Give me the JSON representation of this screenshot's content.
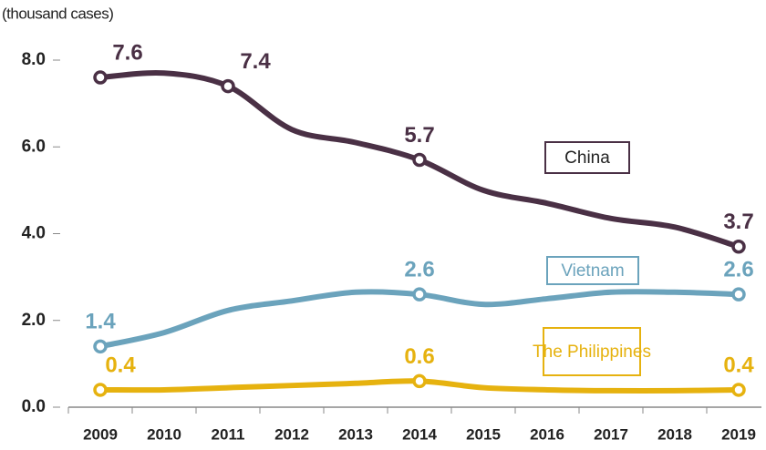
{
  "chart_data": {
    "type": "line",
    "y_label": "(thousand cases)",
    "categories": [
      "2009",
      "2010",
      "2011",
      "2012",
      "2013",
      "2014",
      "2015",
      "2016",
      "2017",
      "2018",
      "2019"
    ],
    "series": [
      {
        "name": "China",
        "color": "#4a3045",
        "values": [
          7.6,
          7.7,
          7.4,
          6.4,
          6.1,
          5.7,
          5.0,
          4.7,
          4.35,
          4.15,
          3.7
        ],
        "value_labels": [
          "7.6",
          null,
          "7.4",
          null,
          null,
          "5.7",
          null,
          null,
          null,
          null,
          "3.7"
        ]
      },
      {
        "name": "Vietnam",
        "color": "#6ba3bc",
        "values": [
          1.4,
          1.72,
          2.23,
          2.45,
          2.65,
          2.6,
          2.37,
          2.5,
          2.65,
          2.65,
          2.6
        ],
        "value_labels": [
          "1.4",
          null,
          null,
          null,
          null,
          "2.6",
          null,
          null,
          null,
          null,
          "2.6"
        ]
      },
      {
        "name": "The Philippines",
        "color": "#e6b20f",
        "values": [
          0.4,
          0.4,
          0.45,
          0.5,
          0.55,
          0.6,
          0.45,
          0.4,
          0.38,
          0.38,
          0.4
        ],
        "value_labels": [
          "0.4",
          null,
          null,
          null,
          null,
          "0.6",
          null,
          null,
          null,
          null,
          "0.4"
        ]
      }
    ],
    "ylim": [
      0,
      8
    ],
    "yticks": [
      {
        "value": 0,
        "label": "0.0"
      },
      {
        "value": 2,
        "label": "2.0"
      },
      {
        "value": 4,
        "label": "4.0"
      },
      {
        "value": 6,
        "label": "6.0"
      },
      {
        "value": 8,
        "label": "8.0"
      }
    ]
  }
}
